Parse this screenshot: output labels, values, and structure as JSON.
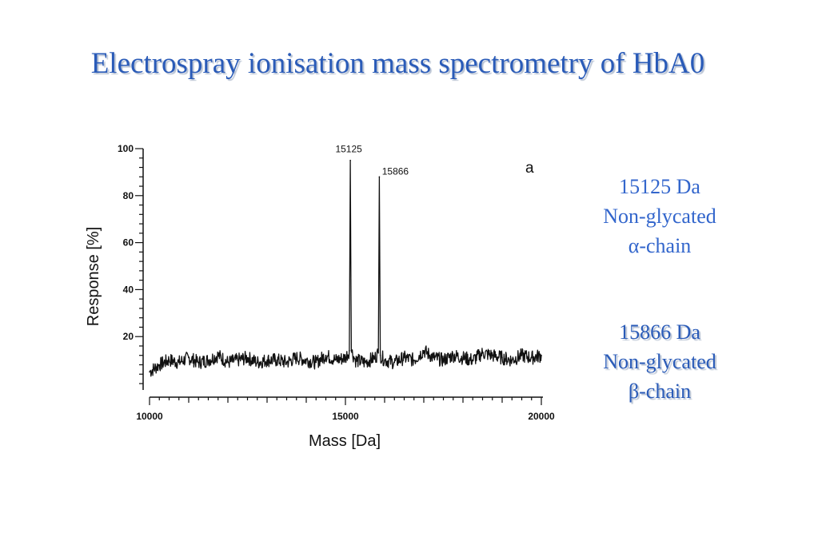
{
  "slide": {
    "title": "Electrospray ionisation mass spectrometry of HbA0"
  },
  "notes": [
    {
      "lines": [
        "15125 Da",
        "Non-glycated",
        "α-chain"
      ]
    },
    {
      "lines": [
        "15866 Da",
        "Non-glycated",
        "β-chain"
      ]
    }
  ],
  "chart_data": {
    "type": "line",
    "title": "",
    "panel_label": "a",
    "xlabel": "Mass [Da]",
    "ylabel": "Response [%]",
    "xlim": [
      10000,
      20000
    ],
    "ylim": [
      0,
      100
    ],
    "x_ticks": [
      10000,
      15000,
      20000
    ],
    "y_ticks": [
      20,
      40,
      60,
      80,
      100
    ],
    "grid": false,
    "series": [
      {
        "x": [
          10000,
          10250,
          10500,
          10750,
          11000,
          11250,
          11500,
          11750,
          12000,
          12250,
          12500,
          12750,
          13000,
          13250,
          13500,
          13750,
          14000,
          14250,
          14500,
          14750,
          15000,
          15100,
          15125,
          15150,
          15250,
          15500,
          15750,
          15840,
          15866,
          15890,
          16000,
          16250,
          16500,
          16750,
          17000,
          17250,
          17500,
          17750,
          18000,
          18250,
          18500,
          18750,
          19000,
          19250,
          19500,
          19750,
          20000
        ],
        "y": [
          5,
          8,
          10,
          9,
          11,
          9,
          10,
          12,
          9,
          10,
          11,
          9,
          10,
          10,
          9,
          11,
          10,
          9,
          12,
          10,
          11,
          14,
          95,
          14,
          10,
          9,
          11,
          13,
          88,
          12,
          10,
          9,
          11,
          10,
          14,
          11,
          10,
          12,
          11,
          10,
          13,
          12,
          11,
          10,
          12,
          11,
          12
        ]
      }
    ],
    "peak_labels": [
      {
        "x": 15125,
        "y": 95,
        "text": "15125"
      },
      {
        "x": 15866,
        "y": 88,
        "text": "15866"
      }
    ]
  }
}
